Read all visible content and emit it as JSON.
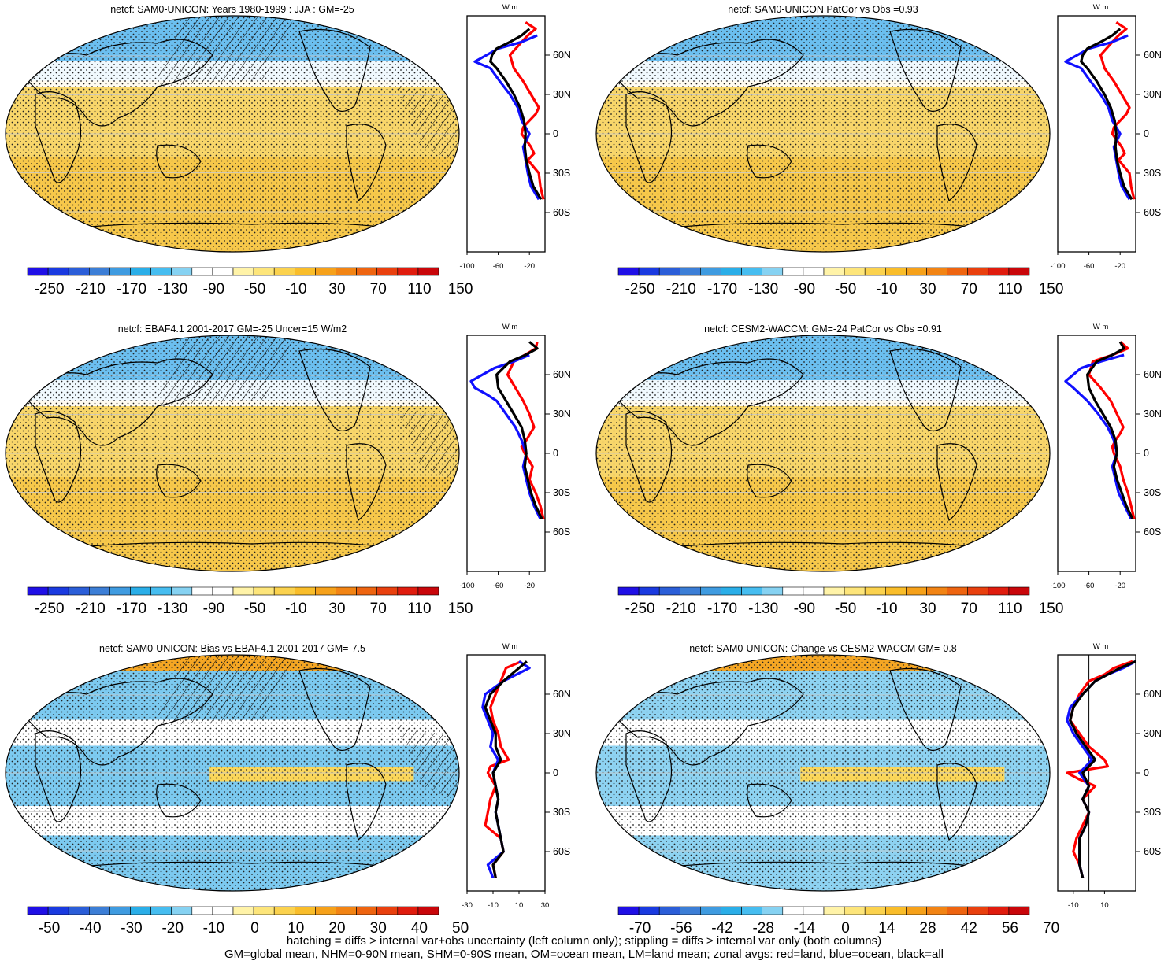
{
  "colors": {
    "scale": [
      "#1f0fe6",
      "#1a3ae0",
      "#2b5ed8",
      "#3c7ed6",
      "#3f9be0",
      "#2aaee8",
      "#46bdf0",
      "#86d2f2",
      "#ffffff",
      "#ffffff",
      "#fff3a8",
      "#fde57a",
      "#fbd24e",
      "#f9bd2a",
      "#f6a11a",
      "#f28414",
      "#ee6410",
      "#e9400e",
      "#e01c0e",
      "#c9060a"
    ],
    "red": "#ff0000",
    "blue": "#1010ff",
    "black": "#000000"
  },
  "caption": {
    "line1": "hatching = diffs > internal var+obs uncertainty (left column only); stippling = diffs > internal var only (both columns)",
    "line2": "GM=global mean, NHM=0-90N mean, SHM=0-90S mean, OM=ocean mean, LM=land mean; zonal avgs: red=land, blue=ocean, black=all"
  },
  "panels": [
    {
      "title": "netcf: SAM0-UNICON: Years 1980-1999 : JJA : GM=-25",
      "base": "#f8d66a",
      "colorbar_labels": [
        "-250",
        "-210",
        "-170",
        "-130",
        "-90",
        "-50",
        "-10",
        "30",
        "70",
        "110",
        "150"
      ],
      "zonal_units": "W m",
      "zonal_xticks": [
        "-100",
        "-60",
        "-20"
      ],
      "lat_labels": [
        "60N",
        "30N",
        "0",
        "30S",
        "60S"
      ]
    },
    {
      "title": "netcf: SAM0-UNICON PatCor vs Obs =0.93",
      "base": "#f8d66a",
      "colorbar_labels": [
        "-250",
        "-210",
        "-170",
        "-130",
        "-90",
        "-50",
        "-10",
        "30",
        "70",
        "110",
        "150"
      ],
      "zonal_units": "W m",
      "zonal_xticks": [
        "-100",
        "-60",
        "-20"
      ],
      "lat_labels": [
        "60N",
        "30N",
        "0",
        "30S",
        "60S"
      ]
    },
    {
      "title": "netcf: EBAF4.1 2001-2017 GM=-25 Uncer=15 W/m2",
      "base": "#f8d66a",
      "colorbar_labels": [
        "-250",
        "-210",
        "-170",
        "-130",
        "-90",
        "-50",
        "-10",
        "30",
        "70",
        "110",
        "150"
      ],
      "zonal_units": "W m",
      "zonal_xticks": [
        "-100",
        "-60",
        "-20"
      ],
      "lat_labels": [
        "60N",
        "30N",
        "0",
        "30S",
        "60S"
      ]
    },
    {
      "title": "netcf: CESM2-WACCM: GM=-24 PatCor vs Obs =0.91",
      "base": "#f8d66a",
      "colorbar_labels": [
        "-250",
        "-210",
        "-170",
        "-130",
        "-90",
        "-50",
        "-10",
        "30",
        "70",
        "110",
        "150"
      ],
      "zonal_units": "W m",
      "zonal_xticks": [
        "-100",
        "-60",
        "-20"
      ],
      "lat_labels": [
        "60N",
        "30N",
        "0",
        "30S",
        "60S"
      ]
    },
    {
      "title": "netcf: SAM0-UNICON: Bias vs EBAF4.1 2001-2017 GM=-7.5",
      "base": "#7ccaf0",
      "colorbar_labels": [
        "-50",
        "-40",
        "-30",
        "-20",
        "-10",
        "0",
        "10",
        "20",
        "30",
        "40",
        "50"
      ],
      "zonal_units": "W m",
      "zonal_xticks": [
        "-30",
        "-10",
        "10",
        "30"
      ],
      "lat_labels": [
        "60N",
        "30N",
        "0",
        "30S",
        "60S"
      ]
    },
    {
      "title": "netcf: SAM0-UNICON: Change vs CESM2-WACCM GM=-0.8",
      "base": "#8ed3f2",
      "colorbar_labels": [
        "-70",
        "-56",
        "-42",
        "-28",
        "-14",
        "0",
        "14",
        "28",
        "42",
        "56",
        "70"
      ],
      "zonal_units": "W m",
      "zonal_xticks": [
        "-10",
        "10"
      ],
      "lat_labels": [
        "60N",
        "30N",
        "0",
        "30S",
        "60S"
      ]
    }
  ],
  "chart_data": [
    {
      "type": "line",
      "title": "netcf: SAM0-UNICON: Years 1980-1999 : JJA : GM=-25",
      "x_range": [
        -100,
        0
      ],
      "y_range": [
        -90,
        90
      ],
      "series": [
        {
          "name": "land",
          "color": "#ff0000",
          "lat": [
            85,
            80,
            75,
            70,
            60,
            50,
            40,
            30,
            20,
            15,
            10,
            5,
            0,
            -5,
            -10,
            -15,
            -20,
            -30,
            -40,
            -50
          ],
          "values": [
            -25,
            -12,
            -22,
            -30,
            -45,
            -40,
            -28,
            -18,
            -8,
            -12,
            -20,
            -28,
            -30,
            -24,
            -18,
            -14,
            -22,
            -8,
            -6,
            -2
          ]
        },
        {
          "name": "ocean",
          "color": "#1010ff",
          "lat": [
            75,
            70,
            65,
            60,
            55,
            50,
            40,
            30,
            20,
            10,
            0,
            -10,
            -20,
            -30,
            -40,
            -50
          ],
          "values": [
            -10,
            -30,
            -60,
            -75,
            -90,
            -70,
            -58,
            -45,
            -35,
            -30,
            -20,
            -28,
            -25,
            -22,
            -18,
            -8
          ]
        },
        {
          "name": "all",
          "color": "#000000",
          "lat": [
            80,
            75,
            70,
            65,
            60,
            55,
            50,
            40,
            30,
            20,
            10,
            0,
            -10,
            -20,
            -30,
            -40,
            -50
          ],
          "values": [
            -20,
            -30,
            -45,
            -62,
            -68,
            -70,
            -62,
            -50,
            -40,
            -32,
            -27,
            -25,
            -26,
            -24,
            -20,
            -15,
            -5
          ]
        }
      ]
    },
    {
      "type": "line",
      "title": "netcf: SAM0-UNICON PatCor vs Obs =0.93",
      "x_range": [
        -100,
        0
      ],
      "y_range": [
        -90,
        90
      ],
      "series": [
        {
          "name": "land",
          "color": "#ff0000",
          "lat": [
            85,
            80,
            75,
            70,
            60,
            50,
            40,
            30,
            20,
            15,
            10,
            5,
            0,
            -5,
            -10,
            -15,
            -20,
            -30,
            -40,
            -50
          ],
          "values": [
            -25,
            -12,
            -22,
            -30,
            -45,
            -40,
            -28,
            -18,
            -8,
            -12,
            -20,
            -28,
            -30,
            -24,
            -18,
            -14,
            -22,
            -8,
            -6,
            -2
          ]
        },
        {
          "name": "ocean",
          "color": "#1010ff",
          "lat": [
            75,
            70,
            65,
            60,
            55,
            50,
            40,
            30,
            20,
            10,
            0,
            -10,
            -20,
            -30,
            -40,
            -50
          ],
          "values": [
            -10,
            -30,
            -60,
            -75,
            -90,
            -70,
            -58,
            -45,
            -35,
            -30,
            -20,
            -28,
            -25,
            -22,
            -18,
            -8
          ]
        },
        {
          "name": "all",
          "color": "#000000",
          "lat": [
            80,
            75,
            70,
            65,
            60,
            55,
            50,
            40,
            30,
            20,
            10,
            0,
            -10,
            -20,
            -30,
            -40,
            -50
          ],
          "values": [
            -20,
            -30,
            -45,
            -62,
            -68,
            -70,
            -62,
            -50,
            -40,
            -32,
            -27,
            -25,
            -26,
            -24,
            -20,
            -15,
            -5
          ]
        }
      ]
    },
    {
      "type": "line",
      "title": "netcf: EBAF4.1 2001-2017 GM=-25 Uncer=15 W/m2",
      "x_range": [
        -100,
        0
      ],
      "y_range": [
        -90,
        90
      ],
      "series": [
        {
          "name": "land",
          "color": "#ff0000",
          "lat": [
            85,
            80,
            70,
            60,
            50,
            40,
            30,
            20,
            10,
            5,
            0,
            -10,
            -20,
            -30,
            -40,
            -50
          ],
          "values": [
            -10,
            -12,
            -40,
            -48,
            -38,
            -28,
            -20,
            -14,
            -24,
            -30,
            -26,
            -16,
            -20,
            -12,
            -6,
            -2
          ]
        },
        {
          "name": "ocean",
          "color": "#1010ff",
          "lat": [
            75,
            70,
            65,
            60,
            55,
            50,
            45,
            40,
            30,
            20,
            10,
            0,
            -10,
            -20,
            -30,
            -40,
            -50
          ],
          "values": [
            -20,
            -40,
            -65,
            -80,
            -95,
            -90,
            -75,
            -62,
            -50,
            -38,
            -30,
            -24,
            -28,
            -24,
            -20,
            -14,
            -6
          ]
        },
        {
          "name": "all",
          "color": "#000000",
          "lat": [
            85,
            80,
            75,
            70,
            60,
            50,
            40,
            30,
            20,
            10,
            0,
            -10,
            -20,
            -30,
            -40,
            -50
          ],
          "values": [
            -20,
            -10,
            -25,
            -45,
            -62,
            -60,
            -50,
            -40,
            -30,
            -26,
            -24,
            -26,
            -22,
            -18,
            -12,
            -4
          ]
        }
      ]
    },
    {
      "type": "line",
      "title": "netcf: CESM2-WACCM: GM=-24 PatCor vs Obs =0.91",
      "x_range": [
        -100,
        0
      ],
      "y_range": [
        -90,
        90
      ],
      "series": [
        {
          "name": "land",
          "color": "#ff0000",
          "lat": [
            85,
            80,
            75,
            70,
            60,
            50,
            40,
            30,
            20,
            15,
            10,
            5,
            0,
            -10,
            -20,
            -30,
            -40,
            -50
          ],
          "values": [
            -20,
            -10,
            -30,
            -55,
            -60,
            -45,
            -32,
            -24,
            -16,
            -20,
            -26,
            -30,
            -28,
            -20,
            -16,
            -10,
            -6,
            -2
          ]
        },
        {
          "name": "ocean",
          "color": "#1010ff",
          "lat": [
            75,
            70,
            65,
            60,
            55,
            50,
            40,
            30,
            20,
            10,
            0,
            -10,
            -20,
            -30,
            -40,
            -50
          ],
          "values": [
            -15,
            -45,
            -70,
            -80,
            -90,
            -80,
            -62,
            -48,
            -36,
            -28,
            -24,
            -30,
            -26,
            -22,
            -14,
            -6
          ]
        },
        {
          "name": "all",
          "color": "#000000",
          "lat": [
            85,
            80,
            75,
            70,
            60,
            50,
            40,
            30,
            20,
            10,
            0,
            -10,
            -20,
            -30,
            -40,
            -50
          ],
          "values": [
            -20,
            -15,
            -30,
            -50,
            -62,
            -60,
            -52,
            -42,
            -32,
            -26,
            -24,
            -28,
            -24,
            -18,
            -12,
            -4
          ]
        }
      ]
    },
    {
      "type": "line",
      "title": "netcf: SAM0-UNICON: Bias vs EBAF4.1 2001-2017 GM=-7.5",
      "x_range": [
        -30,
        30
      ],
      "y_range": [
        -90,
        90
      ],
      "series": [
        {
          "name": "land",
          "color": "#ff0000",
          "lat": [
            85,
            80,
            70,
            60,
            50,
            40,
            30,
            20,
            10,
            5,
            0,
            -10,
            -20,
            -30,
            -40,
            -50,
            -60,
            -70,
            -80
          ],
          "values": [
            12,
            0,
            -4,
            -8,
            -12,
            -10,
            -6,
            -4,
            2,
            -12,
            -14,
            -8,
            -12,
            -14,
            -16,
            -4,
            -2,
            -10,
            -8
          ]
        },
        {
          "name": "ocean",
          "color": "#1010ff",
          "lat": [
            85,
            80,
            70,
            60,
            50,
            40,
            30,
            20,
            10,
            0,
            -10,
            -20,
            -30,
            -40,
            -50,
            -60,
            -70,
            -80
          ],
          "values": [
            10,
            18,
            -2,
            -16,
            -18,
            -14,
            -10,
            -12,
            -6,
            -10,
            -8,
            -6,
            -8,
            -6,
            -4,
            -2,
            -14,
            -10
          ]
        },
        {
          "name": "all",
          "color": "#000000",
          "lat": [
            85,
            80,
            70,
            60,
            50,
            40,
            30,
            20,
            10,
            0,
            -10,
            -20,
            -30,
            -40,
            -50,
            -60,
            -70,
            -80
          ],
          "values": [
            16,
            10,
            -2,
            -12,
            -16,
            -12,
            -8,
            -8,
            -4,
            -10,
            -8,
            -6,
            -8,
            -6,
            -4,
            -2,
            -10,
            -8
          ]
        }
      ]
    },
    {
      "type": "line",
      "title": "netcf: SAM0-UNICON: Change vs CESM2-WACCM GM=-0.8",
      "x_range": [
        -20,
        30
      ],
      "y_range": [
        -90,
        90
      ],
      "series": [
        {
          "name": "land",
          "color": "#ff0000",
          "lat": [
            85,
            80,
            75,
            70,
            60,
            50,
            40,
            30,
            20,
            10,
            5,
            0,
            -5,
            -10,
            -20,
            -30,
            -40,
            -50,
            -60,
            -70,
            -80
          ],
          "values": [
            28,
            16,
            10,
            0,
            -6,
            -10,
            -12,
            -6,
            0,
            10,
            12,
            -14,
            -6,
            4,
            -4,
            0,
            -4,
            -8,
            -10,
            -6,
            -4
          ]
        },
        {
          "name": "ocean",
          "color": "#1010ff",
          "lat": [
            85,
            80,
            75,
            70,
            60,
            50,
            40,
            30,
            20,
            10,
            0,
            -10,
            -20,
            -30,
            -40,
            -50,
            -60,
            -70,
            -80
          ],
          "values": [
            30,
            22,
            12,
            4,
            -4,
            -12,
            -14,
            -10,
            -4,
            2,
            -6,
            0,
            -4,
            0,
            -2,
            -6,
            -6,
            -6,
            -4
          ]
        },
        {
          "name": "all",
          "color": "#000000",
          "lat": [
            85,
            80,
            75,
            70,
            60,
            50,
            40,
            30,
            20,
            10,
            0,
            -10,
            -20,
            -30,
            -40,
            -50,
            -60,
            -70,
            -80
          ],
          "values": [
            30,
            20,
            12,
            4,
            -4,
            -10,
            -12,
            -8,
            -2,
            4,
            -4,
            0,
            -4,
            0,
            -2,
            -6,
            -6,
            -6,
            -4
          ]
        }
      ]
    }
  ]
}
